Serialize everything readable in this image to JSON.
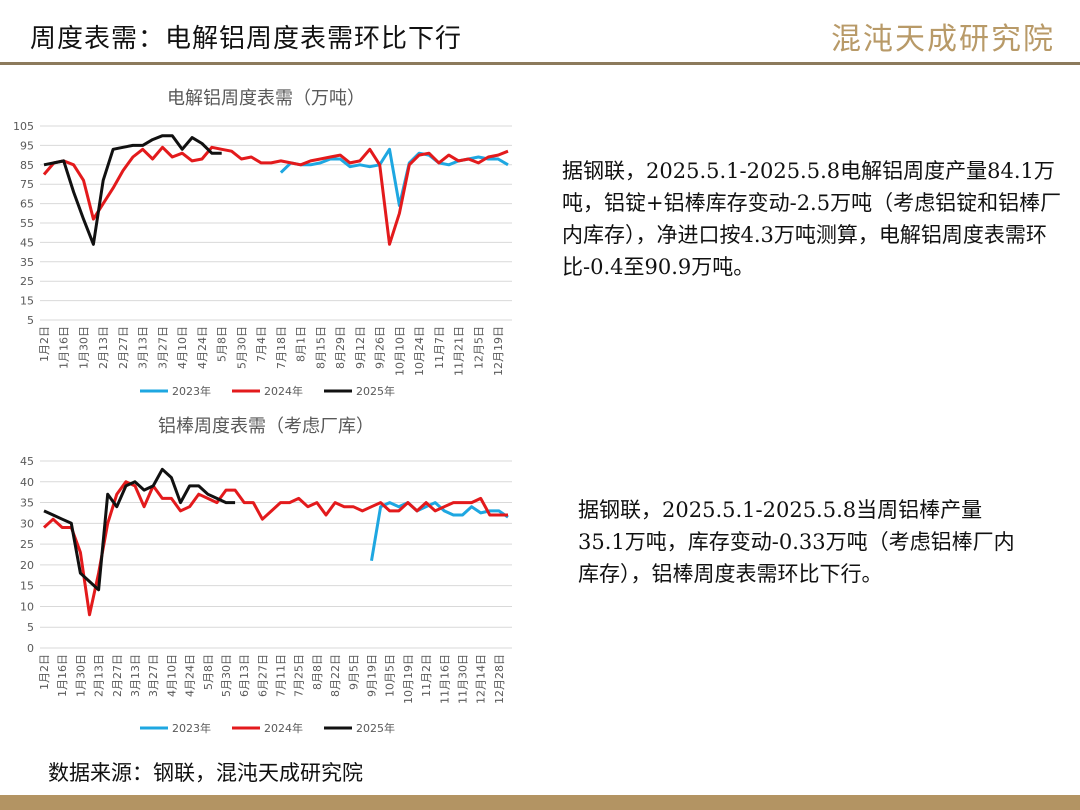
{
  "header": {
    "title": "周度表需：电解铝周度表需环比下行",
    "logo": "混沌天成研究院"
  },
  "paragraphs": [
    "据钢联，2025.5.1-2025.5.8电解铝周度产量84.1万吨，铝锭+铝棒库存变动-2.5万吨（考虑铝锭和铝棒厂内库存），净进口按4.3万吨测算，电解铝周度表需环比-0.4至90.9万吨。",
    "据钢联，2025.5.1-2025.5.8当周铝棒产量35.1万吨，库存变动-0.33万吨（考虑铝棒厂内库存），铝棒周度表需环比下行。"
  ],
  "source": "数据来源：钢联，混沌天成研究院",
  "chart_data": [
    {
      "type": "line",
      "title": "电解铝周度表需（万吨）",
      "categories": [
        "1月2日",
        null,
        "1月16日",
        null,
        "1月30日",
        null,
        "2月13日",
        null,
        "2月27日",
        null,
        "3月13日",
        null,
        "3月27日",
        null,
        "4月10日",
        null,
        "4月24日",
        null,
        "5月8日",
        null,
        "5月30日",
        null,
        "7月4日",
        null,
        "7月18日",
        null,
        "8月1日",
        null,
        "8月15日",
        null,
        "8月29日",
        null,
        "9月12日",
        null,
        "9月26日",
        null,
        "10月10日",
        null,
        "10月24日",
        null,
        "11月7日",
        null,
        "11月21日",
        null,
        "12月5日",
        null,
        "12月19日",
        null
      ],
      "ylim": [
        5,
        105
      ],
      "yticks": [
        5,
        15,
        25,
        35,
        45,
        55,
        65,
        75,
        85,
        95,
        105
      ],
      "grid": true,
      "series": [
        {
          "name": "2023年",
          "color": "#1ea7e1",
          "values": [
            null,
            null,
            null,
            null,
            null,
            null,
            null,
            null,
            null,
            null,
            null,
            null,
            null,
            null,
            null,
            null,
            null,
            null,
            null,
            null,
            null,
            null,
            null,
            null,
            81,
            86,
            85,
            85,
            86,
            88,
            88,
            84,
            85,
            84,
            85,
            93,
            64,
            86,
            91,
            90,
            86,
            85,
            87,
            88,
            89,
            88,
            88,
            85
          ]
        },
        {
          "name": "2024年",
          "color": "#e31a1c",
          "values": [
            80,
            86,
            87,
            85,
            77,
            57,
            65,
            73,
            82,
            89,
            93,
            88,
            94,
            89,
            91,
            87,
            88,
            94,
            93,
            92,
            88,
            89,
            86,
            86,
            87,
            86,
            85,
            87,
            88,
            89,
            90,
            86,
            87,
            93,
            85,
            44,
            60,
            85,
            90,
            91,
            86,
            90,
            87,
            88,
            86,
            89,
            90,
            92
          ]
        },
        {
          "name": "2025年",
          "color": "#111111",
          "values": [
            85,
            86,
            87,
            71,
            57,
            44,
            77,
            93,
            94,
            95,
            95,
            98,
            100,
            100,
            93,
            99,
            96,
            91,
            91,
            null,
            null,
            null,
            null,
            null,
            null,
            null,
            null,
            null,
            null,
            null,
            null,
            null,
            null,
            null,
            null,
            null,
            null,
            null,
            null,
            null,
            null,
            null,
            null,
            null,
            null,
            null,
            null,
            null
          ]
        }
      ]
    },
    {
      "type": "line",
      "title": "铝棒周度表需（考虑厂库）",
      "categories": [
        "1月2日",
        null,
        "1月16日",
        null,
        "1月30日",
        null,
        "2月13日",
        null,
        "2月27日",
        null,
        "3月13日",
        null,
        "3月27日",
        null,
        "4月10日",
        null,
        "4月24日",
        null,
        "5月8日",
        null,
        "5月30日",
        null,
        "6月13日",
        null,
        "6月27日",
        null,
        "7月11日",
        null,
        "7月25日",
        null,
        "8月8日",
        null,
        "8月22日",
        null,
        "9月5日",
        null,
        "9月19日",
        null,
        "10月5日",
        null,
        "10月19日",
        null,
        "11月2日",
        null,
        "11月16日",
        null,
        "11月30日",
        null,
        "12月14日",
        null,
        "12月28日",
        null
      ],
      "ylim": [
        0,
        45
      ],
      "yticks": [
        0,
        5,
        10,
        15,
        20,
        25,
        30,
        35,
        40,
        45
      ],
      "grid": true,
      "series": [
        {
          "name": "2023年",
          "color": "#1ea7e1",
          "values": [
            null,
            null,
            null,
            null,
            null,
            null,
            null,
            null,
            null,
            null,
            null,
            null,
            null,
            null,
            null,
            null,
            null,
            null,
            null,
            null,
            null,
            null,
            null,
            null,
            null,
            null,
            null,
            null,
            null,
            null,
            null,
            null,
            null,
            null,
            null,
            null,
            21,
            34,
            35,
            34,
            35,
            33,
            34,
            35,
            33,
            32,
            32,
            34,
            32.5,
            33,
            33,
            31.5
          ]
        },
        {
          "name": "2024年",
          "color": "#e31a1c",
          "values": [
            29,
            31,
            29,
            29,
            23,
            8,
            18,
            30,
            37,
            40,
            39,
            34,
            39,
            36,
            36,
            33,
            34,
            37,
            36,
            35,
            38,
            38,
            35,
            35,
            31,
            33,
            35,
            35,
            36,
            34,
            35,
            32,
            35,
            34,
            34,
            33,
            34,
            35,
            33,
            33,
            35,
            33,
            35,
            33,
            34,
            35,
            35,
            35,
            36,
            32,
            32,
            32
          ]
        },
        {
          "name": "2025年",
          "color": "#111111",
          "values": [
            33,
            32,
            31,
            30,
            18,
            16,
            14,
            37,
            34,
            39,
            40,
            38,
            39,
            43,
            41,
            35,
            39,
            39,
            37,
            36,
            35,
            35,
            null,
            null,
            null,
            null,
            null,
            null,
            null,
            null,
            null,
            null,
            null,
            null,
            null,
            null,
            null,
            null,
            null,
            null,
            null,
            null,
            null,
            null,
            null,
            null,
            null,
            null,
            null,
            null,
            null,
            null
          ]
        }
      ]
    }
  ]
}
